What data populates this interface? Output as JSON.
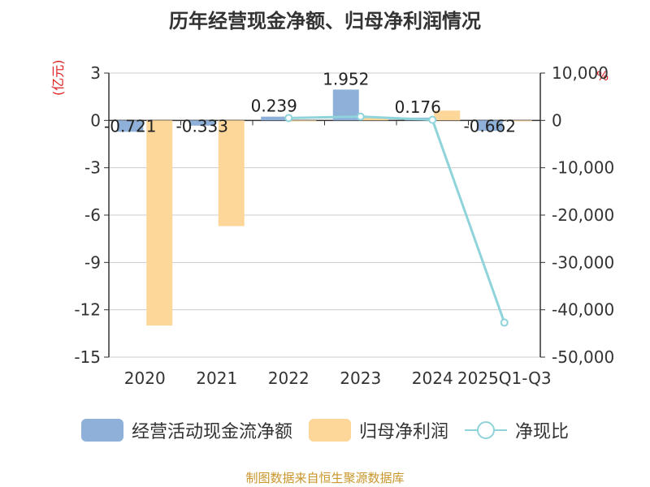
{
  "title": "历年经营现金净额、归母净利润情况",
  "source": "制图数据来自恒生聚源数据库",
  "chart_data": {
    "type": "bar",
    "categories": [
      "2020",
      "2021",
      "2022",
      "2023",
      "2024",
      "2025Q1-Q3"
    ],
    "y_left": {
      "unit": "(亿元)",
      "ylim": [
        -15,
        3
      ],
      "ticks": [
        "3",
        "0",
        "-3",
        "-6",
        "-9",
        "-12",
        "-15"
      ],
      "tick_values": [
        3,
        0,
        -3,
        -6,
        -9,
        -12,
        -15
      ]
    },
    "y_right": {
      "unit": "%",
      "ylim": [
        -50000,
        10000
      ],
      "ticks": [
        "10,000",
        "0",
        "-10,000",
        "-20,000",
        "-30,000",
        "-40,000",
        "-50,000"
      ],
      "tick_values": [
        10000,
        0,
        -10000,
        -20000,
        -30000,
        -40000,
        -50000
      ]
    },
    "series": [
      {
        "name": "经营活动现金流净额",
        "type": "bar",
        "axis": "left",
        "color": "#8eb0d9",
        "values": [
          -0.721,
          -0.333,
          0.239,
          1.952,
          0.176,
          -0.662
        ],
        "labels": [
          "-0.721",
          "-0.333",
          "0.239",
          "1.952",
          "0.176",
          "-0.662"
        ]
      },
      {
        "name": "归母净利润",
        "type": "bar",
        "axis": "left",
        "color": "#fdd79a",
        "values": [
          -13.0,
          -6.7,
          -0.05,
          0.2,
          0.62,
          -0.01
        ]
      },
      {
        "name": "净现比",
        "type": "line",
        "axis": "right",
        "color": "#8fd3db",
        "values": [
          null,
          null,
          500,
          800,
          120,
          -42700
        ]
      }
    ],
    "grid": true,
    "legend_position": "bottom"
  }
}
